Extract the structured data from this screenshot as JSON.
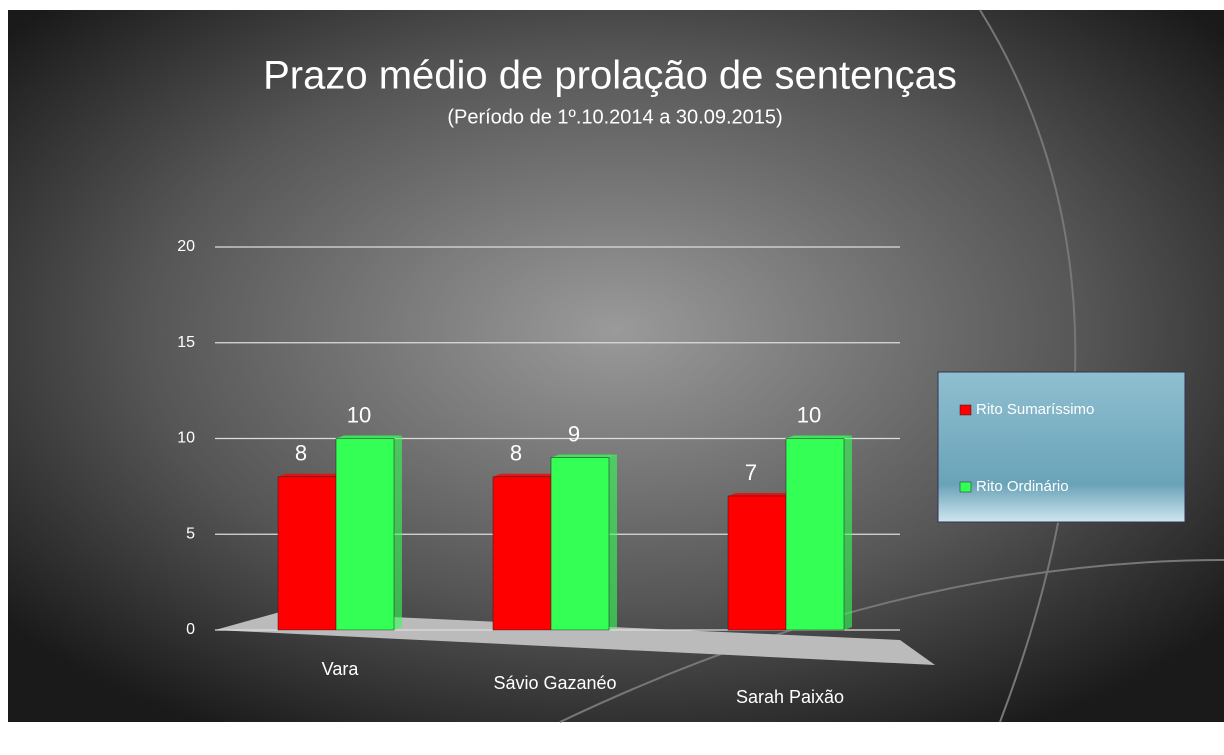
{
  "chart_data": {
    "type": "bar",
    "title": "Prazo médio de prolação de sentenças",
    "subtitle": "(Período de 1º.10.2014  a  30.09.2015)",
    "categories": [
      "Vara",
      "Sávio Gazanéo",
      "Sarah Paixão"
    ],
    "series": [
      {
        "name": "Rito Sumaríssimo",
        "color": "#ff0000",
        "values": [
          8,
          8,
          7
        ]
      },
      {
        "name": "Rito Ordinário",
        "color": "#33ff55",
        "values": [
          10,
          9,
          10
        ]
      }
    ],
    "ylim": [
      0,
      20
    ],
    "yticks": [
      0,
      5,
      10,
      15,
      20
    ],
    "grid": true,
    "legend": "right"
  }
}
